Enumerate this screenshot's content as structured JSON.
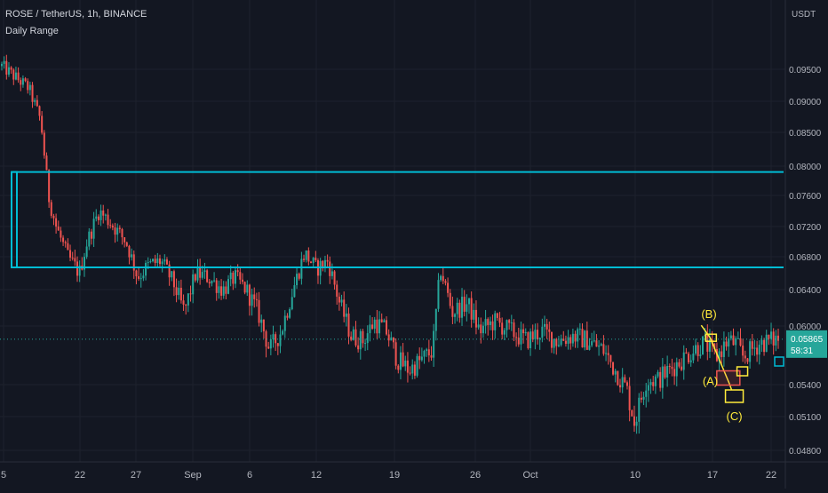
{
  "header": {
    "symbol_line": "ROSE / TetherUS, 1h, BINANCE",
    "indicator": "Daily Range"
  },
  "colors": {
    "background": "#131722",
    "up": "#26a69a",
    "down": "#ef5350",
    "zone": "#00bcd4",
    "annotation": "#ffeb3b",
    "price_line": "#26a69a",
    "grid": "#1e222d"
  },
  "chart_data": {
    "type": "candlestick",
    "x_tick_labels": [
      "5",
      "22",
      "27",
      "Sep",
      "6",
      "12",
      "19",
      "26",
      "Oct",
      "10",
      "17",
      "22"
    ],
    "y_axis_unit": "USDT",
    "y_tick_labels": [
      "0.09500",
      "0.09000",
      "0.08500",
      "0.08000",
      "0.07600",
      "0.07200",
      "0.06800",
      "0.06400",
      "0.06000",
      "0.05400",
      "0.05100",
      "0.04800"
    ],
    "y_tick_values": [
      0.095,
      0.09,
      0.085,
      0.08,
      0.076,
      0.072,
      0.068,
      0.064,
      0.06,
      0.054,
      0.051,
      0.048
    ],
    "current_price": "0.05865",
    "countdown": "58:31",
    "current_price_value": 0.05865,
    "zone": {
      "top": 0.0792,
      "bottom": 0.0667
    },
    "series_path": [
      [
        0.0,
        0.0955
      ],
      [
        0.02,
        0.0935
      ],
      [
        0.035,
        0.092
      ],
      [
        0.05,
        0.087
      ],
      [
        0.06,
        0.076
      ],
      [
        0.07,
        0.072
      ],
      [
        0.085,
        0.068
      ],
      [
        0.1,
        0.066
      ],
      [
        0.11,
        0.07
      ],
      [
        0.125,
        0.074
      ],
      [
        0.14,
        0.0725
      ],
      [
        0.16,
        0.07
      ],
      [
        0.175,
        0.0655
      ],
      [
        0.19,
        0.067
      ],
      [
        0.205,
        0.0675
      ],
      [
        0.22,
        0.065
      ],
      [
        0.235,
        0.0615
      ],
      [
        0.25,
        0.066
      ],
      [
        0.265,
        0.0655
      ],
      [
        0.285,
        0.064
      ],
      [
        0.3,
        0.0655
      ],
      [
        0.315,
        0.064
      ],
      [
        0.33,
        0.0615
      ],
      [
        0.345,
        0.0575
      ],
      [
        0.36,
        0.0595
      ],
      [
        0.375,
        0.064
      ],
      [
        0.39,
        0.0685
      ],
      [
        0.405,
        0.0665
      ],
      [
        0.42,
        0.0675
      ],
      [
        0.435,
        0.0625
      ],
      [
        0.45,
        0.059
      ],
      [
        0.465,
        0.0585
      ],
      [
        0.48,
        0.0605
      ],
      [
        0.495,
        0.0595
      ],
      [
        0.51,
        0.0565
      ],
      [
        0.525,
        0.0555
      ],
      [
        0.54,
        0.0565
      ],
      [
        0.555,
        0.0575
      ],
      [
        0.565,
        0.0665
      ],
      [
        0.58,
        0.0615
      ],
      [
        0.6,
        0.0625
      ],
      [
        0.615,
        0.0595
      ],
      [
        0.635,
        0.0605
      ],
      [
        0.655,
        0.0595
      ],
      [
        0.675,
        0.0585
      ],
      [
        0.695,
        0.0595
      ],
      [
        0.715,
        0.0585
      ],
      [
        0.735,
        0.059
      ],
      [
        0.755,
        0.0585
      ],
      [
        0.775,
        0.0575
      ],
      [
        0.79,
        0.0555
      ],
      [
        0.805,
        0.0535
      ],
      [
        0.815,
        0.0505
      ],
      [
        0.83,
        0.0545
      ],
      [
        0.845,
        0.0545
      ],
      [
        0.86,
        0.0555
      ],
      [
        0.875,
        0.0565
      ],
      [
        0.89,
        0.0575
      ],
      [
        0.905,
        0.0583
      ],
      [
        0.92,
        0.0568
      ],
      [
        0.935,
        0.0585
      ],
      [
        0.945,
        0.0582
      ],
      [
        0.955,
        0.0568
      ],
      [
        0.965,
        0.0575
      ],
      [
        0.975,
        0.0582
      ],
      [
        1.0,
        0.0587
      ]
    ],
    "annotations": {
      "labels": [
        "(A)",
        "(B)",
        "(C)"
      ],
      "points": {
        "A": [
          0.93,
          0.0545
        ],
        "B": [
          0.91,
          0.0588
        ],
        "C": [
          0.94,
          0.0535
        ]
      }
    }
  }
}
